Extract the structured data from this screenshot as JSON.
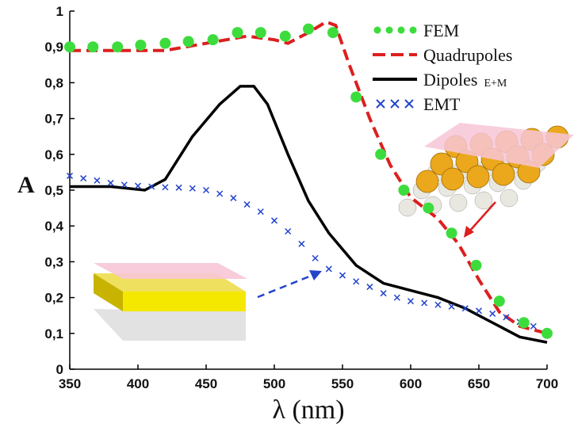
{
  "chart_data": {
    "type": "line",
    "y_label": "A",
    "x_label": "λ (nm)",
    "xlim": [
      350,
      700
    ],
    "ylim": [
      0,
      1
    ],
    "xticks": [
      350,
      400,
      450,
      500,
      550,
      600,
      650,
      700
    ],
    "yticks": [
      0,
      {
        "value": 0.1,
        "label": "0,1"
      },
      {
        "value": 0.2,
        "label": "0,2"
      },
      {
        "value": 0.3,
        "label": "0,3"
      },
      {
        "value": 0.4,
        "label": "0,4"
      },
      {
        "value": 0.5,
        "label": "0,5"
      },
      {
        "value": 0.6,
        "label": "0,6"
      },
      {
        "value": 0.7,
        "label": "0,7"
      },
      {
        "value": 0.8,
        "label": "0,8"
      },
      {
        "value": 0.9,
        "label": "0,9"
      },
      1
    ],
    "series": [
      {
        "name": "FEM",
        "color": "#3ddc3d",
        "style": "dots",
        "x": [
          350,
          367,
          385,
          402,
          420,
          437,
          455,
          473,
          490,
          508,
          525,
          543,
          560,
          578,
          595,
          613,
          630,
          648,
          665,
          683,
          700
        ],
        "values": [
          0.9,
          0.9,
          0.9,
          0.905,
          0.91,
          0.915,
          0.92,
          0.94,
          0.94,
          0.93,
          0.95,
          0.94,
          0.76,
          0.6,
          0.5,
          0.45,
          0.38,
          0.29,
          0.19,
          0.13,
          0.1
        ]
      },
      {
        "name": "Quadrupoles",
        "color": "#dd1f1f",
        "style": "dashed",
        "x": [
          350,
          400,
          420,
          450,
          480,
          500,
          510,
          525,
          538,
          545,
          555,
          570,
          585,
          600,
          620,
          635,
          650,
          665,
          680,
          700
        ],
        "values": [
          0.89,
          0.89,
          0.89,
          0.91,
          0.93,
          0.92,
          0.91,
          0.94,
          0.97,
          0.96,
          0.85,
          0.7,
          0.57,
          0.48,
          0.42,
          0.35,
          0.25,
          0.16,
          0.12,
          0.1
        ]
      },
      {
        "name": "Dipoles",
        "name_suffix": "E+M",
        "color": "#000000",
        "style": "solid",
        "x": [
          350,
          380,
          405,
          420,
          440,
          460,
          475,
          485,
          495,
          510,
          525,
          540,
          560,
          580,
          600,
          620,
          640,
          660,
          680,
          700
        ],
        "values": [
          0.51,
          0.51,
          0.5,
          0.53,
          0.65,
          0.74,
          0.79,
          0.79,
          0.74,
          0.6,
          0.47,
          0.38,
          0.29,
          0.24,
          0.22,
          0.2,
          0.17,
          0.13,
          0.09,
          0.075
        ]
      },
      {
        "name": "EMT",
        "color": "#2244cc",
        "style": "crosses",
        "x": [
          350,
          360,
          370,
          380,
          390,
          400,
          410,
          420,
          430,
          440,
          450,
          460,
          470,
          480,
          490,
          500,
          510,
          520,
          530,
          540,
          550,
          560,
          570,
          580,
          590,
          600,
          610,
          620,
          630,
          640,
          650,
          660,
          670,
          680,
          690,
          700
        ],
        "values": [
          0.54,
          0.533,
          0.527,
          0.52,
          0.515,
          0.512,
          0.51,
          0.508,
          0.507,
          0.505,
          0.5,
          0.49,
          0.478,
          0.46,
          0.44,
          0.415,
          0.385,
          0.35,
          0.31,
          0.28,
          0.262,
          0.245,
          0.23,
          0.212,
          0.2,
          0.19,
          0.185,
          0.18,
          0.175,
          0.17,
          0.163,
          0.155,
          0.145,
          0.132,
          0.12,
          0.105
        ]
      }
    ]
  }
}
